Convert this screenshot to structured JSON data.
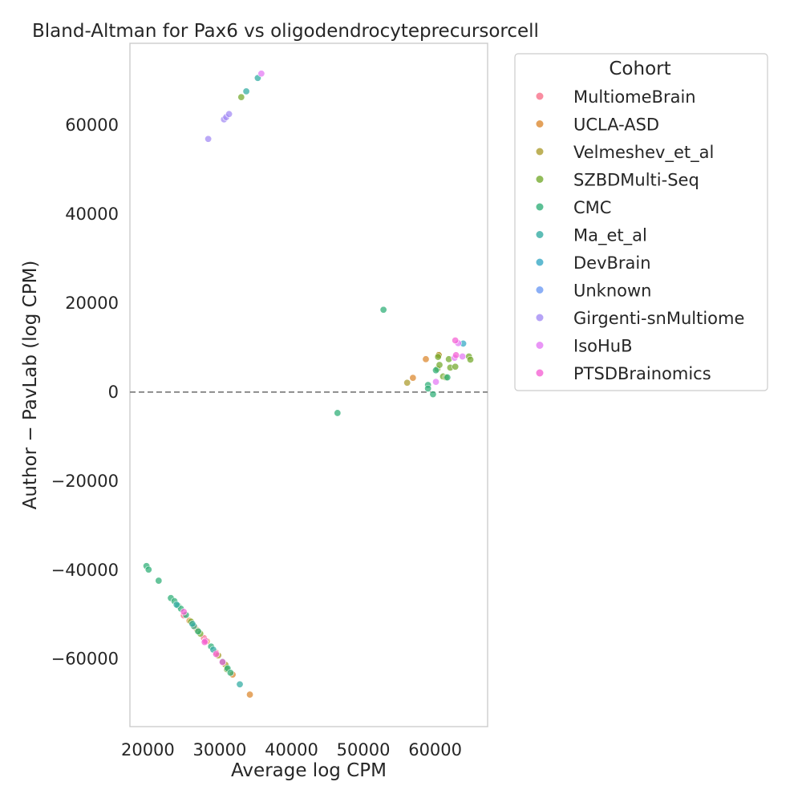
{
  "chart_data": {
    "type": "scatter",
    "title": "Bland-Altman for Pax6 vs oligodendrocyteprecursorcell",
    "xlabel": "Average log CPM",
    "ylabel": "Author − PavLab (log CPM)",
    "xlim": [
      17500,
      67300
    ],
    "ylim": [
      -75200,
      78400
    ],
    "xticks": [
      20000,
      30000,
      40000,
      50000,
      60000
    ],
    "yticks": [
      -60000,
      -40000,
      -20000,
      0,
      20000,
      40000,
      60000
    ],
    "xtick_labels": [
      "20000",
      "30000",
      "40000",
      "50000",
      "60000"
    ],
    "ytick_labels": [
      "−60000",
      "−40000",
      "−20000",
      "0",
      "20000",
      "40000",
      "60000"
    ],
    "reference_line": 0,
    "grid": false,
    "legend_title": "Cohort",
    "legend_position": "outside-right-top",
    "series": [
      {
        "name": "MultiomeBrain",
        "color": "#f77189",
        "points": [
          [
            25000,
            -50200
          ],
          [
            26500,
            -52800
          ],
          [
            27800,
            -55300
          ],
          [
            29500,
            -58600
          ]
        ]
      },
      {
        "name": "UCLA-ASD",
        "color": "#dc8932",
        "points": [
          [
            34200,
            -68000
          ],
          [
            31800,
            -63500
          ],
          [
            25800,
            -51400
          ],
          [
            28200,
            -56000
          ],
          [
            58700,
            7400
          ],
          [
            56900,
            3200
          ],
          [
            60500,
            8400
          ]
        ]
      },
      {
        "name": "Velmeshev_et_al",
        "color": "#ae9d31",
        "points": [
          [
            26900,
            -53600
          ],
          [
            29800,
            -59200
          ],
          [
            30800,
            -61300
          ],
          [
            56100,
            2100
          ],
          [
            60500,
            8300
          ]
        ]
      },
      {
        "name": "SZBDMulti-Seq",
        "color": "#77ab31",
        "points": [
          [
            33000,
            66300
          ],
          [
            26000,
            -51600
          ],
          [
            27300,
            -54300
          ],
          [
            31000,
            -62300
          ],
          [
            60300,
            5200
          ],
          [
            60600,
            6100
          ],
          [
            61100,
            3500
          ],
          [
            61500,
            3300
          ],
          [
            61900,
            7400
          ],
          [
            62100,
            5500
          ],
          [
            62800,
            5700
          ],
          [
            64700,
            8000
          ],
          [
            64900,
            7300
          ],
          [
            60400,
            7900
          ]
        ]
      },
      {
        "name": "CMC",
        "color": "#33b07a",
        "points": [
          [
            52800,
            18500
          ],
          [
            46400,
            -4700
          ],
          [
            19800,
            -39100
          ],
          [
            20100,
            -39900
          ],
          [
            21500,
            -42400
          ],
          [
            23200,
            -46300
          ],
          [
            23700,
            -47000
          ],
          [
            24200,
            -48000
          ],
          [
            24600,
            -48700
          ],
          [
            25300,
            -50100
          ],
          [
            26400,
            -52600
          ],
          [
            27000,
            -53800
          ],
          [
            28800,
            -57200
          ],
          [
            30400,
            -60600
          ],
          [
            31100,
            -62100
          ],
          [
            31500,
            -63100
          ],
          [
            59000,
            1600
          ],
          [
            59000,
            800
          ],
          [
            59700,
            -500
          ],
          [
            60100,
            4900
          ],
          [
            61700,
            3300
          ]
        ]
      },
      {
        "name": "Ma_et_al",
        "color": "#36ada4",
        "points": [
          [
            33700,
            67600
          ],
          [
            35300,
            70600
          ],
          [
            32800,
            -65700
          ],
          [
            24000,
            -47800
          ],
          [
            26200,
            -52100
          ],
          [
            29100,
            -57900
          ]
        ]
      },
      {
        "name": "DevBrain",
        "color": "#38a9c5",
        "points": [
          [
            63900,
            10900
          ]
        ]
      },
      {
        "name": "Unknown",
        "color": "#6e9bf4",
        "points": []
      },
      {
        "name": "Girgenti-snMultiome",
        "color": "#a48cf4",
        "points": [
          [
            28400,
            56900
          ],
          [
            30600,
            61300
          ],
          [
            30900,
            61800
          ],
          [
            31300,
            62500
          ]
        ]
      },
      {
        "name": "IsoHuB",
        "color": "#e47cf4",
        "points": [
          [
            35800,
            71600
          ],
          [
            60100,
            2300
          ],
          [
            62700,
            7700
          ],
          [
            63200,
            11000
          ],
          [
            63800,
            8000
          ]
        ]
      },
      {
        "name": "PTSDBrainomics",
        "color": "#f564d4",
        "points": [
          [
            25000,
            -49400
          ],
          [
            28000,
            -55900
          ],
          [
            29500,
            -58900
          ],
          [
            30400,
            -60700
          ],
          [
            62800,
            11600
          ],
          [
            62900,
            8300
          ],
          [
            27900,
            -56200
          ]
        ]
      }
    ]
  }
}
